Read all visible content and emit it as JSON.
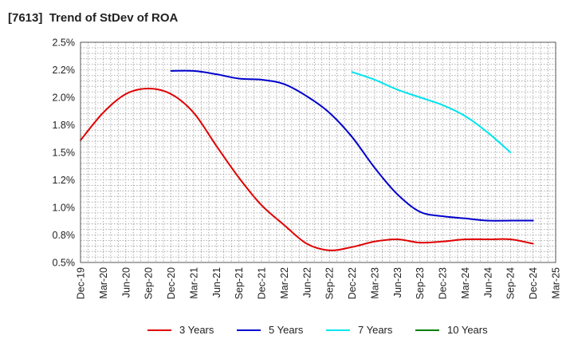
{
  "chart_data": {
    "type": "line",
    "title_code": "[7613]",
    "title": "Trend of StDev of ROA",
    "x_labels": [
      "Dec-19",
      "Mar-20",
      "Jun-20",
      "Sep-20",
      "Dec-20",
      "Mar-21",
      "Jun-21",
      "Sep-21",
      "Dec-21",
      "Mar-22",
      "Jun-22",
      "Sep-22",
      "Dec-22",
      "Mar-23",
      "Jun-23",
      "Sep-23",
      "Dec-23",
      "Mar-24",
      "Jun-24",
      "Sep-24",
      "Dec-24",
      "Mar-25"
    ],
    "y_ticks": [
      "0.5%",
      "0.8%",
      "1.0%",
      "1.2%",
      "1.5%",
      "1.8%",
      "2.0%",
      "2.2%",
      "2.5%"
    ],
    "ylim": [
      0.5,
      2.5
    ],
    "y_unit": "%",
    "grid": true,
    "legend_position": "bottom",
    "series": [
      {
        "name": "3 Years",
        "color": "#e00000",
        "start_index": 0,
        "values": [
          1.61,
          1.86,
          2.03,
          2.08,
          2.03,
          1.86,
          1.56,
          1.27,
          1.02,
          0.84,
          0.67,
          0.61,
          0.64,
          0.69,
          0.71,
          0.68,
          0.69,
          0.71,
          0.71,
          0.71,
          0.67
        ]
      },
      {
        "name": "5 Years",
        "color": "#0000cc",
        "start_index": 4,
        "values": [
          2.24,
          2.24,
          2.21,
          2.17,
          2.16,
          2.12,
          2.01,
          1.86,
          1.64,
          1.36,
          1.12,
          0.96,
          0.92,
          0.9,
          0.88,
          0.88,
          0.88
        ]
      },
      {
        "name": "7 Years",
        "color": "#00e5ee",
        "start_index": 12,
        "values": [
          2.23,
          2.16,
          2.07,
          2.0,
          1.93,
          1.83,
          1.68,
          1.5
        ]
      },
      {
        "name": "10 Years",
        "color": "#008000",
        "start_index": 0,
        "values": []
      }
    ]
  }
}
